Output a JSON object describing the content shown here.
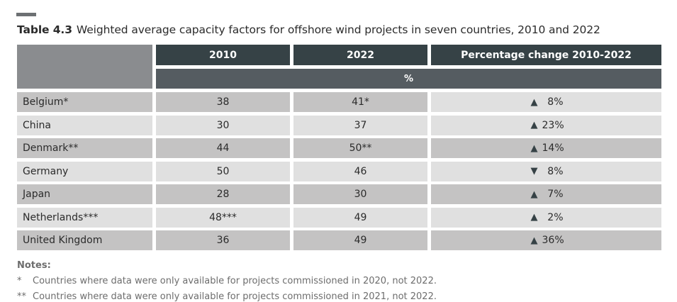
{
  "table_number": "Table 4.3",
  "title": "Weighted average capacity factors for offshore wind projects in seven countries, 2010 and 2022",
  "headers": [
    "2010",
    "2022",
    "Percentage change 2010-2022"
  ],
  "unit": "%",
  "rows": [
    {
      "country": "Belgium*",
      "y2010": "38",
      "y2022": "41*",
      "direction": "up",
      "change": "8%"
    },
    {
      "country": "China",
      "y2010": "30",
      "y2022": "37",
      "direction": "up",
      "change": "23%"
    },
    {
      "country": "Denmark**",
      "y2010": "44",
      "y2022": "50**",
      "direction": "up",
      "change": "14%"
    },
    {
      "country": "Germany",
      "y2010": "50",
      "y2022": "46",
      "direction": "down",
      "change": "8%"
    },
    {
      "country": "Japan",
      "y2010": "28",
      "y2022": "30",
      "direction": "up",
      "change": "7%"
    },
    {
      "country": "Netherlands***",
      "y2010": "48***",
      "y2022": "49",
      "direction": "up",
      "change": "2%"
    },
    {
      "country": "United Kingdom",
      "y2010": "36",
      "y2022": "49",
      "direction": "up",
      "change": "36%"
    }
  ],
  "notes": {
    "heading": "Notes:",
    "items": [
      {
        "marker": "*",
        "text": "Countries where data were only available for projects commissioned in 2020, not 2022."
      },
      {
        "marker": "**",
        "text": "Countries where data were only available for projects commissioned in 2021, not 2022."
      }
    ]
  },
  "colors": {
    "header": "#364246",
    "subheader": "#555c61",
    "row_dark": "#c4c3c3",
    "row_light": "#e0e0e0"
  }
}
